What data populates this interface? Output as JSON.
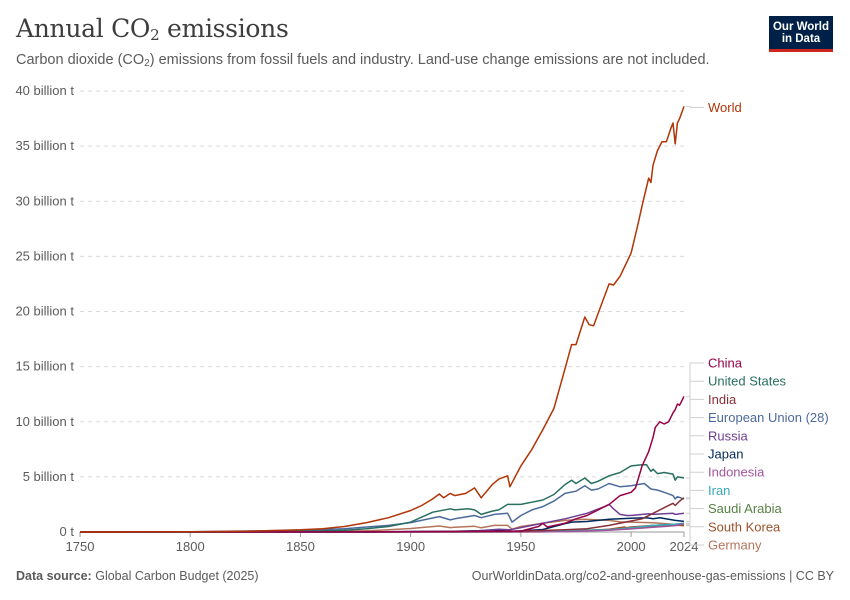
{
  "header": {
    "title_main": "Annual CO",
    "title_sub": "2",
    "title_rest": " emissions",
    "subtitle_a": "Carbon dioxide (CO",
    "subtitle_sub": "2",
    "subtitle_b": ") emissions from fossil fuels and industry. Land-use change emissions are not included."
  },
  "logo": {
    "line1": "Our World",
    "line2": "in Data"
  },
  "footer": {
    "source_label": "Data source:",
    "source_value": "Global Carbon Budget (2025)",
    "url": "OurWorldinData.org/co2-and-greenhouse-gas-emissions | CC BY"
  },
  "chart_data": {
    "type": "line",
    "ylabel_unit": "billion t",
    "ylim": [
      0,
      40
    ],
    "xlim": [
      1750,
      2024
    ],
    "y_ticks": [
      {
        "value": 0,
        "label": "0 t"
      },
      {
        "value": 5,
        "label": "5 billion t"
      },
      {
        "value": 10,
        "label": "10 billion t"
      },
      {
        "value": 15,
        "label": "15 billion t"
      },
      {
        "value": 20,
        "label": "20 billion t"
      },
      {
        "value": 25,
        "label": "25 billion t"
      },
      {
        "value": 30,
        "label": "30 billion t"
      },
      {
        "value": 35,
        "label": "35 billion t"
      },
      {
        "value": 40,
        "label": "40 billion t"
      }
    ],
    "x_ticks": [
      {
        "value": 1750,
        "label": "1750"
      },
      {
        "value": 1800,
        "label": "1800"
      },
      {
        "value": 1850,
        "label": "1850"
      },
      {
        "value": 1900,
        "label": "1900"
      },
      {
        "value": 1950,
        "label": "1950"
      },
      {
        "value": 2000,
        "label": "2000"
      },
      {
        "value": 2024,
        "label": "2024"
      }
    ],
    "grid": "horizontal dashed",
    "legend": "right",
    "series": [
      {
        "name": "World",
        "color": "#b13507",
        "points": [
          [
            1750,
            0.009
          ],
          [
            1775,
            0.015
          ],
          [
            1800,
            0.03
          ],
          [
            1825,
            0.06
          ],
          [
            1850,
            0.2
          ],
          [
            1860,
            0.3
          ],
          [
            1870,
            0.5
          ],
          [
            1880,
            0.85
          ],
          [
            1890,
            1.3
          ],
          [
            1900,
            1.95
          ],
          [
            1905,
            2.4
          ],
          [
            1910,
            3.0
          ],
          [
            1913,
            3.45
          ],
          [
            1915,
            3.1
          ],
          [
            1918,
            3.5
          ],
          [
            1920,
            3.3
          ],
          [
            1925,
            3.5
          ],
          [
            1929,
            4.0
          ],
          [
            1932,
            3.1
          ],
          [
            1937,
            4.3
          ],
          [
            1940,
            4.8
          ],
          [
            1944,
            5.1
          ],
          [
            1945,
            4.1
          ],
          [
            1950,
            6.0
          ],
          [
            1955,
            7.5
          ],
          [
            1960,
            9.3
          ],
          [
            1965,
            11.2
          ],
          [
            1970,
            14.8
          ],
          [
            1973,
            17.0
          ],
          [
            1975,
            17.0
          ],
          [
            1979,
            19.5
          ],
          [
            1981,
            18.8
          ],
          [
            1983,
            18.7
          ],
          [
            1985,
            19.8
          ],
          [
            1990,
            22.5
          ],
          [
            1992,
            22.4
          ],
          [
            1995,
            23.2
          ],
          [
            2000,
            25.3
          ],
          [
            2003,
            27.8
          ],
          [
            2005,
            29.6
          ],
          [
            2008,
            32.1
          ],
          [
            2009,
            31.7
          ],
          [
            2010,
            33.3
          ],
          [
            2012,
            34.6
          ],
          [
            2014,
            35.4
          ],
          [
            2016,
            35.4
          ],
          [
            2018,
            36.6
          ],
          [
            2019,
            37.1
          ],
          [
            2020,
            35.2
          ],
          [
            2021,
            37.1
          ],
          [
            2022,
            37.5
          ],
          [
            2024,
            38.6
          ]
        ]
      },
      {
        "name": "China",
        "color": "#970046",
        "points": [
          [
            1750,
            0
          ],
          [
            1900,
            0.02
          ],
          [
            1950,
            0.08
          ],
          [
            1958,
            0.5
          ],
          [
            1960,
            0.78
          ],
          [
            1962,
            0.45
          ],
          [
            1970,
            0.8
          ],
          [
            1975,
            1.2
          ],
          [
            1980,
            1.5
          ],
          [
            1990,
            2.5
          ],
          [
            1995,
            3.3
          ],
          [
            2000,
            3.6
          ],
          [
            2002,
            4.0
          ],
          [
            2005,
            6.0
          ],
          [
            2008,
            7.3
          ],
          [
            2010,
            8.6
          ],
          [
            2011,
            9.5
          ],
          [
            2013,
            10.0
          ],
          [
            2015,
            9.8
          ],
          [
            2017,
            10.0
          ],
          [
            2019,
            10.8
          ],
          [
            2020,
            11.1
          ],
          [
            2021,
            11.6
          ],
          [
            2022,
            11.5
          ],
          [
            2024,
            12.3
          ]
        ]
      },
      {
        "name": "United States",
        "color": "#286f5f",
        "points": [
          [
            1750,
            0
          ],
          [
            1800,
            0.003
          ],
          [
            1850,
            0.05
          ],
          [
            1870,
            0.15
          ],
          [
            1880,
            0.3
          ],
          [
            1890,
            0.5
          ],
          [
            1900,
            0.9
          ],
          [
            1910,
            1.8
          ],
          [
            1918,
            2.1
          ],
          [
            1920,
            2.0
          ],
          [
            1926,
            2.1
          ],
          [
            1929,
            2.0
          ],
          [
            1932,
            1.6
          ],
          [
            1937,
            1.9
          ],
          [
            1940,
            2.0
          ],
          [
            1944,
            2.5
          ],
          [
            1950,
            2.5
          ],
          [
            1955,
            2.7
          ],
          [
            1960,
            2.9
          ],
          [
            1965,
            3.4
          ],
          [
            1970,
            4.3
          ],
          [
            1973,
            4.7
          ],
          [
            1975,
            4.4
          ],
          [
            1979,
            4.9
          ],
          [
            1982,
            4.4
          ],
          [
            1985,
            4.6
          ],
          [
            1990,
            5.1
          ],
          [
            1995,
            5.4
          ],
          [
            2000,
            6.0
          ],
          [
            2005,
            6.1
          ],
          [
            2007,
            6.1
          ],
          [
            2009,
            5.5
          ],
          [
            2010,
            5.7
          ],
          [
            2012,
            5.3
          ],
          [
            2015,
            5.4
          ],
          [
            2019,
            5.25
          ],
          [
            2020,
            4.7
          ],
          [
            2021,
            5.0
          ],
          [
            2024,
            4.9
          ]
        ]
      },
      {
        "name": "India",
        "color": "#883039",
        "points": [
          [
            1750,
            0
          ],
          [
            1900,
            0.02
          ],
          [
            1950,
            0.06
          ],
          [
            1970,
            0.2
          ],
          [
            1980,
            0.3
          ],
          [
            1990,
            0.6
          ],
          [
            2000,
            1.0
          ],
          [
            2005,
            1.2
          ],
          [
            2010,
            1.7
          ],
          [
            2015,
            2.2
          ],
          [
            2019,
            2.6
          ],
          [
            2020,
            2.4
          ],
          [
            2022,
            2.8
          ],
          [
            2024,
            3.1
          ]
        ]
      },
      {
        "name": "European Union (28)",
        "color": "#4c6a9c",
        "points": [
          [
            1750,
            0.009
          ],
          [
            1800,
            0.025
          ],
          [
            1850,
            0.15
          ],
          [
            1870,
            0.3
          ],
          [
            1880,
            0.45
          ],
          [
            1890,
            0.6
          ],
          [
            1900,
            0.85
          ],
          [
            1913,
            1.4
          ],
          [
            1918,
            1.1
          ],
          [
            1920,
            1.2
          ],
          [
            1929,
            1.5
          ],
          [
            1932,
            1.3
          ],
          [
            1938,
            1.6
          ],
          [
            1944,
            1.7
          ],
          [
            1946,
            0.9
          ],
          [
            1950,
            1.5
          ],
          [
            1955,
            2.0
          ],
          [
            1960,
            2.3
          ],
          [
            1965,
            2.8
          ],
          [
            1970,
            3.5
          ],
          [
            1975,
            3.7
          ],
          [
            1979,
            4.2
          ],
          [
            1982,
            3.8
          ],
          [
            1985,
            3.9
          ],
          [
            1990,
            4.4
          ],
          [
            1995,
            4.1
          ],
          [
            2000,
            4.2
          ],
          [
            2006,
            4.4
          ],
          [
            2009,
            3.9
          ],
          [
            2012,
            3.8
          ],
          [
            2015,
            3.6
          ],
          [
            2019,
            3.3
          ],
          [
            2020,
            3.0
          ],
          [
            2021,
            3.2
          ],
          [
            2024,
            3.0
          ]
        ]
      },
      {
        "name": "Russia",
        "color": "#6d3e91",
        "points": [
          [
            1750,
            0
          ],
          [
            1880,
            0.005
          ],
          [
            1900,
            0.05
          ],
          [
            1913,
            0.07
          ],
          [
            1920,
            0.03
          ],
          [
            1930,
            0.1
          ],
          [
            1940,
            0.25
          ],
          [
            1945,
            0.2
          ],
          [
            1950,
            0.4
          ],
          [
            1960,
            0.8
          ],
          [
            1970,
            1.2
          ],
          [
            1980,
            1.7
          ],
          [
            1988,
            2.3
          ],
          [
            1990,
            2.5
          ],
          [
            1992,
            2.1
          ],
          [
            1995,
            1.6
          ],
          [
            1998,
            1.5
          ],
          [
            2000,
            1.5
          ],
          [
            2008,
            1.65
          ],
          [
            2010,
            1.6
          ],
          [
            2015,
            1.65
          ],
          [
            2019,
            1.7
          ],
          [
            2020,
            1.6
          ],
          [
            2024,
            1.7
          ]
        ]
      },
      {
        "name": "Japan",
        "color": "#00295b",
        "points": [
          [
            1750,
            0
          ],
          [
            1880,
            0.003
          ],
          [
            1900,
            0.02
          ],
          [
            1920,
            0.06
          ],
          [
            1940,
            0.15
          ],
          [
            1945,
            0.05
          ],
          [
            1950,
            0.1
          ],
          [
            1960,
            0.23
          ],
          [
            1970,
            0.75
          ],
          [
            1973,
            0.9
          ],
          [
            1980,
            0.95
          ],
          [
            1990,
            1.15
          ],
          [
            2000,
            1.25
          ],
          [
            2007,
            1.3
          ],
          [
            2010,
            1.2
          ],
          [
            2013,
            1.3
          ],
          [
            2020,
            1.05
          ],
          [
            2024,
            0.96
          ]
        ]
      },
      {
        "name": "Indonesia",
        "color": "#a2559c",
        "points": [
          [
            1750,
            0
          ],
          [
            1900,
            0.001
          ],
          [
            1950,
            0.01
          ],
          [
            1970,
            0.03
          ],
          [
            1980,
            0.1
          ],
          [
            1990,
            0.15
          ],
          [
            2000,
            0.28
          ],
          [
            2010,
            0.43
          ],
          [
            2015,
            0.5
          ],
          [
            2020,
            0.58
          ],
          [
            2024,
            0.75
          ]
        ]
      },
      {
        "name": "Iran",
        "color": "#38aaba",
        "points": [
          [
            1750,
            0
          ],
          [
            1900,
            0.0
          ],
          [
            1950,
            0.02
          ],
          [
            1970,
            0.08
          ],
          [
            1980,
            0.15
          ],
          [
            1990,
            0.2
          ],
          [
            2000,
            0.37
          ],
          [
            2010,
            0.6
          ],
          [
            2015,
            0.65
          ],
          [
            2020,
            0.72
          ],
          [
            2024,
            0.8
          ]
        ]
      },
      {
        "name": "Saudi Arabia",
        "color": "#578145",
        "points": [
          [
            1750,
            0
          ],
          [
            1950,
            0.005
          ],
          [
            1970,
            0.05
          ],
          [
            1980,
            0.17
          ],
          [
            1990,
            0.2
          ],
          [
            2000,
            0.3
          ],
          [
            2010,
            0.53
          ],
          [
            2015,
            0.62
          ],
          [
            2020,
            0.62
          ],
          [
            2024,
            0.7
          ]
        ]
      },
      {
        "name": "South Korea",
        "color": "#9a5129",
        "points": [
          [
            1750,
            0
          ],
          [
            1940,
            0.01
          ],
          [
            1955,
            0.01
          ],
          [
            1960,
            0.01
          ],
          [
            1970,
            0.05
          ],
          [
            1980,
            0.14
          ],
          [
            1990,
            0.25
          ],
          [
            1997,
            0.45
          ],
          [
            1998,
            0.38
          ],
          [
            2000,
            0.45
          ],
          [
            2010,
            0.6
          ],
          [
            2018,
            0.67
          ],
          [
            2020,
            0.6
          ],
          [
            2024,
            0.6
          ]
        ]
      },
      {
        "name": "Germany",
        "color": "#b4745a",
        "points": [
          [
            1750,
            0.0
          ],
          [
            1800,
            0.001
          ],
          [
            1850,
            0.03
          ],
          [
            1870,
            0.08
          ],
          [
            1880,
            0.12
          ],
          [
            1890,
            0.2
          ],
          [
            1900,
            0.32
          ],
          [
            1913,
            0.54
          ],
          [
            1918,
            0.4
          ],
          [
            1920,
            0.43
          ],
          [
            1929,
            0.52
          ],
          [
            1932,
            0.38
          ],
          [
            1938,
            0.6
          ],
          [
            1944,
            0.6
          ],
          [
            1946,
            0.25
          ],
          [
            1950,
            0.5
          ],
          [
            1960,
            0.8
          ],
          [
            1970,
            1.05
          ],
          [
            1979,
            1.15
          ],
          [
            1985,
            1.1
          ],
          [
            1990,
            1.05
          ],
          [
            1995,
            0.92
          ],
          [
            2000,
            0.9
          ],
          [
            2010,
            0.83
          ],
          [
            2019,
            0.71
          ],
          [
            2020,
            0.65
          ],
          [
            2024,
            0.57
          ]
        ]
      }
    ]
  }
}
